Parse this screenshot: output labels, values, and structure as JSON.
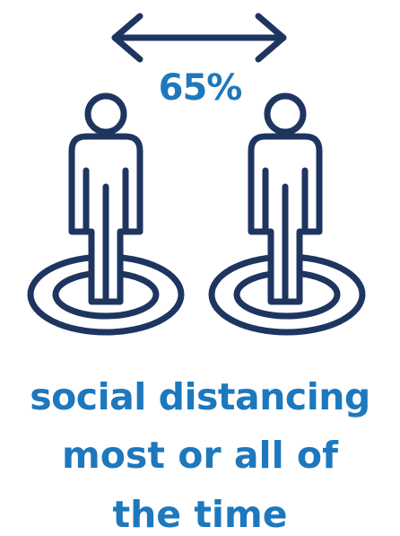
{
  "colors": {
    "icon_navy": "#1e3560",
    "text_blue": "#1d78bd",
    "background": "#ffffff"
  },
  "icons": [
    "double-arrow",
    "person-left",
    "person-right",
    "target-rings"
  ],
  "stat": {
    "value": "65%"
  },
  "caption": {
    "line1": "social distancing",
    "line2": "most or all of",
    "line3": "the time"
  }
}
